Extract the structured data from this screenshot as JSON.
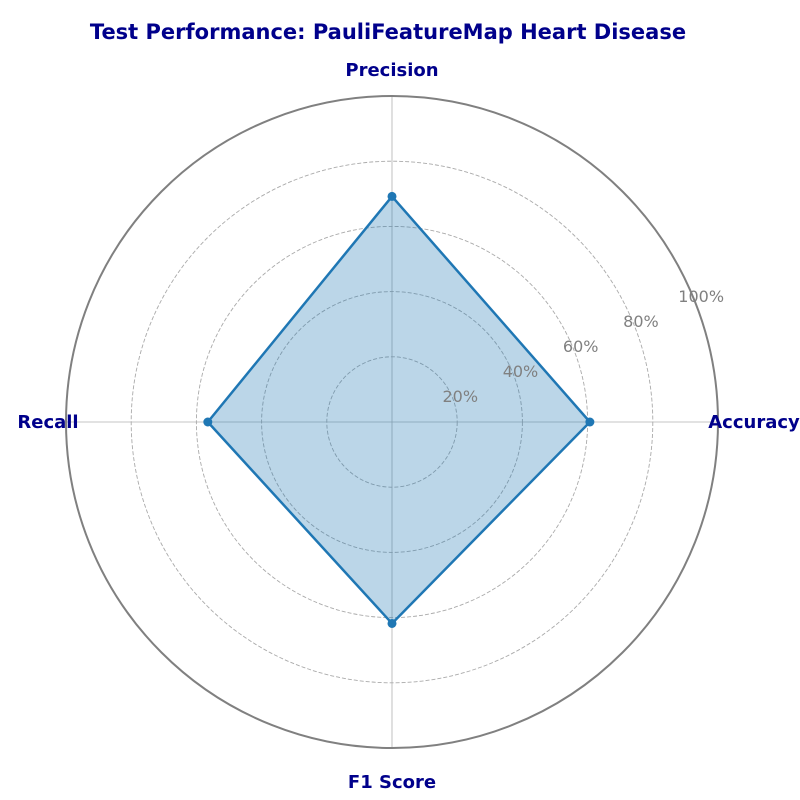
{
  "chart_data": {
    "type": "radar",
    "title": "Test Performance: PauliFeatureMap Heart Disease",
    "axes": [
      "Accuracy",
      "Precision",
      "Recall",
      "F1 Score"
    ],
    "series": [
      {
        "values": [
          0.607,
          0.692,
          0.565,
          0.618
        ]
      }
    ],
    "rlim": [
      0,
      1
    ],
    "r_ticks": [
      0.2,
      0.4,
      0.6,
      0.8,
      1.0
    ],
    "r_tick_labels": [
      "20%",
      "40%",
      "60%",
      "80%",
      "100%"
    ],
    "grid": true,
    "colors": {
      "title": "#00008B",
      "axis_label": "#00008B",
      "tick_label": "#808080",
      "series_line": "#1f77b4",
      "series_fill": "#1f77b4",
      "outer_ring": "#808080",
      "grid": "#aaaaaa",
      "spoke": "#b0b0b0"
    }
  }
}
